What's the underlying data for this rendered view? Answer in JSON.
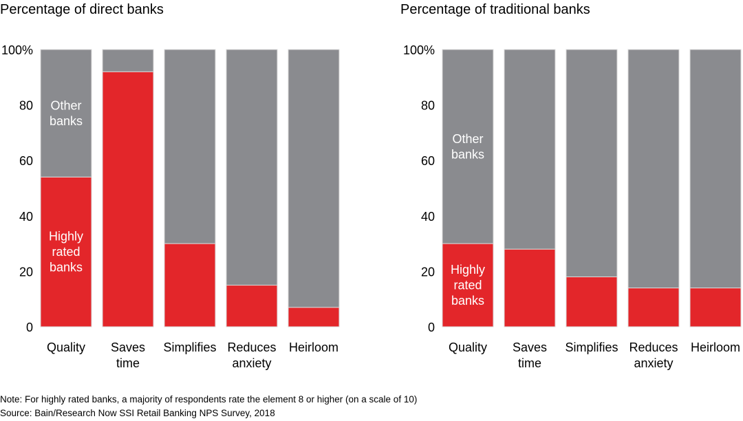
{
  "colors": {
    "highly_rated": "#e3262a",
    "other": "#8a8b8f",
    "bar_edge": "#d9d9d9"
  },
  "chart_data": [
    {
      "type": "bar",
      "stacked": true,
      "title": "Percentage of direct banks",
      "categories": [
        [
          "Quality"
        ],
        [
          "Saves",
          "time"
        ],
        [
          "Simplifies"
        ],
        [
          "Reduces",
          "anxiety"
        ],
        [
          "Heirloom"
        ]
      ],
      "ylim": [
        0,
        100
      ],
      "yticks": [
        "0",
        "20",
        "40",
        "60",
        "80",
        "100%"
      ],
      "series": [
        {
          "name": "Highly rated banks",
          "label_lines": [
            "Highly",
            "rated",
            "banks"
          ],
          "values": [
            54,
            92,
            30,
            15,
            7
          ]
        },
        {
          "name": "Other banks",
          "label_lines": [
            "Other",
            "banks"
          ],
          "values": [
            46,
            8,
            70,
            85,
            93
          ]
        }
      ],
      "grid": false,
      "legend": "inline labels on first bar"
    },
    {
      "type": "bar",
      "stacked": true,
      "title": "Percentage of traditional banks",
      "categories": [
        [
          "Quality"
        ],
        [
          "Saves",
          "time"
        ],
        [
          "Simplifies"
        ],
        [
          "Reduces",
          "anxiety"
        ],
        [
          "Heirloom"
        ]
      ],
      "ylim": [
        0,
        100
      ],
      "yticks": [
        "0",
        "20",
        "40",
        "60",
        "80",
        "100%"
      ],
      "series": [
        {
          "name": "Highly rated banks",
          "label_lines": [
            "Highly",
            "rated",
            "banks"
          ],
          "values": [
            30,
            28,
            18,
            14,
            14
          ]
        },
        {
          "name": "Other banks",
          "label_lines": [
            "Other",
            "banks"
          ],
          "values": [
            70,
            72,
            82,
            86,
            86
          ]
        }
      ],
      "grid": false,
      "legend": "inline labels on first bar"
    }
  ],
  "footer": {
    "note": "Note: For highly rated banks, a majority of respondents rate the element 8 or higher (on a scale of 10)",
    "source": "Source: Bain/Research Now SSI Retail Banking NPS Survey, 2018"
  }
}
